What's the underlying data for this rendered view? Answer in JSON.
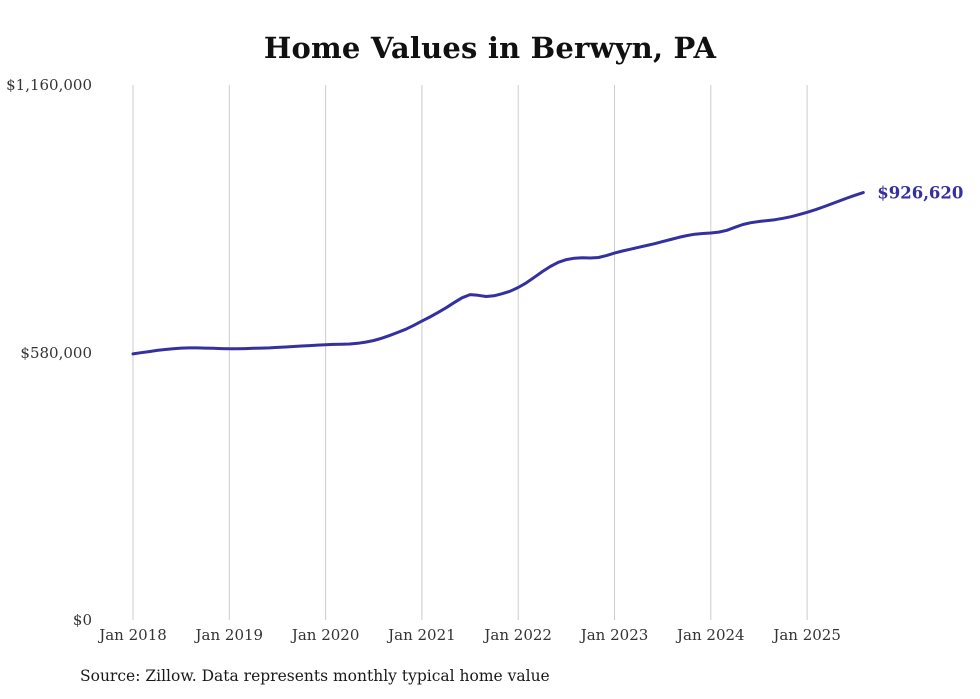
{
  "title": "Home Values in Berwyn, PA",
  "source_note": "Source: Zillow. Data represents monthly typical home value",
  "end_label": "$926,620",
  "colors": {
    "line": "#34309f",
    "grid": "#cccccc",
    "title": "#111111",
    "axis_text": "#333333"
  },
  "chart_data": {
    "type": "line",
    "title": "Home Values in Berwyn, PA",
    "frequency": "monthly",
    "x_start": "Jan 2018",
    "x_tick_labels": [
      "Jan 2018",
      "Jan 2019",
      "Jan 2020",
      "Jan 2021",
      "Jan 2022",
      "Jan 2023",
      "Jan 2024",
      "Jan 2025"
    ],
    "y_ticks": [
      {
        "label": "$0",
        "value": 0
      },
      {
        "label": "$580,000",
        "value": 580000
      },
      {
        "label": "$1,160,000",
        "value": 1160000
      }
    ],
    "ylim": [
      0,
      1160000
    ],
    "grid": "vertical-only",
    "legend_position": "none",
    "latest_value": 926620,
    "latest_value_label": "$926,620",
    "series": [
      {
        "name": "Typical home value",
        "values": [
          577000,
          579500,
          582000,
          584500,
          586500,
          588000,
          589500,
          590000,
          590000,
          589500,
          589000,
          588500,
          588000,
          588000,
          588500,
          589000,
          589500,
          590000,
          591000,
          592000,
          593000,
          594000,
          595000,
          596000,
          597000,
          597500,
          598000,
          598500,
          600000,
          602500,
          606000,
          611000,
          617000,
          623500,
          630500,
          639000,
          648000,
          657000,
          666500,
          677000,
          688000,
          698500,
          705500,
          704000,
          701500,
          703000,
          707500,
          713000,
          721000,
          731000,
          743000,
          755500,
          766500,
          775500,
          781500,
          784500,
          785500,
          785000,
          786000,
          790000,
          795500,
          800000,
          804000,
          808000,
          812000,
          816000,
          820500,
          825000,
          829500,
          833500,
          836500,
          838000,
          839000,
          841000,
          845000,
          851500,
          857500,
          861500,
          864000,
          866000,
          868000,
          871000,
          874500,
          879000,
          884000,
          889500,
          895500,
          902000,
          908500,
          915000,
          921000,
          926620
        ]
      }
    ]
  }
}
